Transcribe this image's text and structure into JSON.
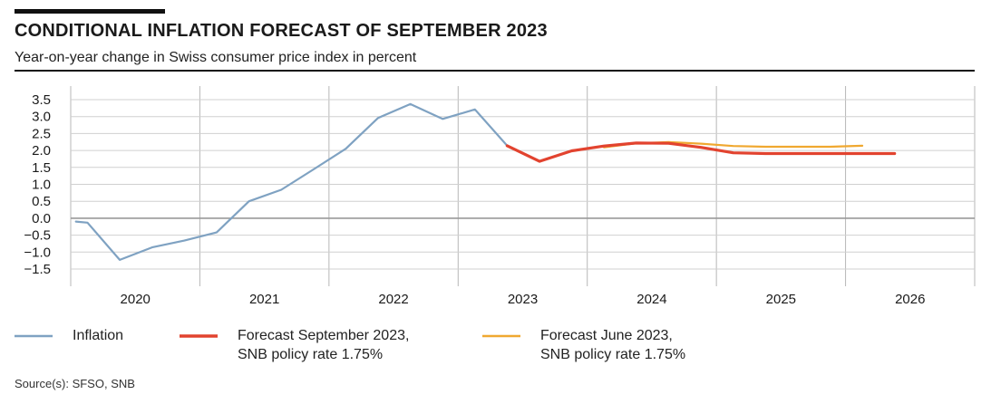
{
  "header": {
    "title": "CONDITIONAL INFLATION FORECAST OF SEPTEMBER 2023",
    "subtitle": "Year-on-year change in Swiss consumer price index in percent"
  },
  "legend": [
    {
      "line1": "Inflation",
      "line2": "",
      "color": "#7fa2c2"
    },
    {
      "line1": "Forecast September 2023,",
      "line2": "SNB policy rate 1.75%",
      "color": "#e2432f"
    },
    {
      "line1": "Forecast June 2023,",
      "line2": "SNB policy rate 1.75%",
      "color": "#f0a830"
    }
  ],
  "source": "Source(s): SFSO, SNB",
  "chart_data": {
    "type": "line",
    "xlim": [
      2019.5,
      2026.5
    ],
    "ylim": [
      -1.5,
      3.5
    ],
    "yticks": [
      3.5,
      3.0,
      2.5,
      2.0,
      1.5,
      1.0,
      0.5,
      0.0,
      -0.5,
      -1.0,
      -1.5
    ],
    "ytick_labels": [
      "3.5",
      "3.0",
      "2.5",
      "2.0",
      "1.5",
      "1.0",
      "0.5",
      "0.0",
      "−0.5",
      "−1.0",
      "−1.5"
    ],
    "xtick_labels": [
      "2020",
      "2021",
      "2022",
      "2023",
      "2024",
      "2025",
      "2026"
    ],
    "grid": true,
    "series": [
      {
        "name": "Inflation",
        "color": "#7fa2c2",
        "x": [
          2019.54,
          2019.63,
          2019.88,
          2020.13,
          2020.38,
          2020.63,
          2020.88,
          2021.13,
          2021.38,
          2021.63,
          2021.88,
          2022.13,
          2022.38,
          2022.63,
          2022.88
        ],
        "y": [
          -0.1,
          -0.13,
          -1.23,
          -0.86,
          -0.66,
          -0.42,
          0.5,
          0.84,
          1.44,
          2.05,
          2.96,
          3.37,
          2.93,
          3.21,
          2.14
        ]
      },
      {
        "name": "Forecast September 2023, SNB policy rate 1.75%",
        "color": "#e2432f",
        "x": [
          2022.88,
          2023.13,
          2023.38,
          2023.63,
          2023.88,
          2024.13,
          2024.38,
          2024.63,
          2024.88,
          2025.13,
          2025.38,
          2025.63,
          2025.88
        ],
        "y": [
          2.14,
          1.68,
          1.99,
          2.13,
          2.22,
          2.21,
          2.09,
          1.93,
          1.91,
          1.91,
          1.91,
          1.91,
          1.91
        ]
      },
      {
        "name": "Forecast June 2023, SNB policy rate 1.75%",
        "color": "#f0a830",
        "x": [
          2023.63,
          2023.88,
          2024.13,
          2024.38,
          2024.63,
          2024.88,
          2025.13,
          2025.38,
          2025.63
        ],
        "y": [
          2.09,
          2.21,
          2.25,
          2.2,
          2.13,
          2.11,
          2.11,
          2.11,
          2.14
        ]
      }
    ]
  }
}
